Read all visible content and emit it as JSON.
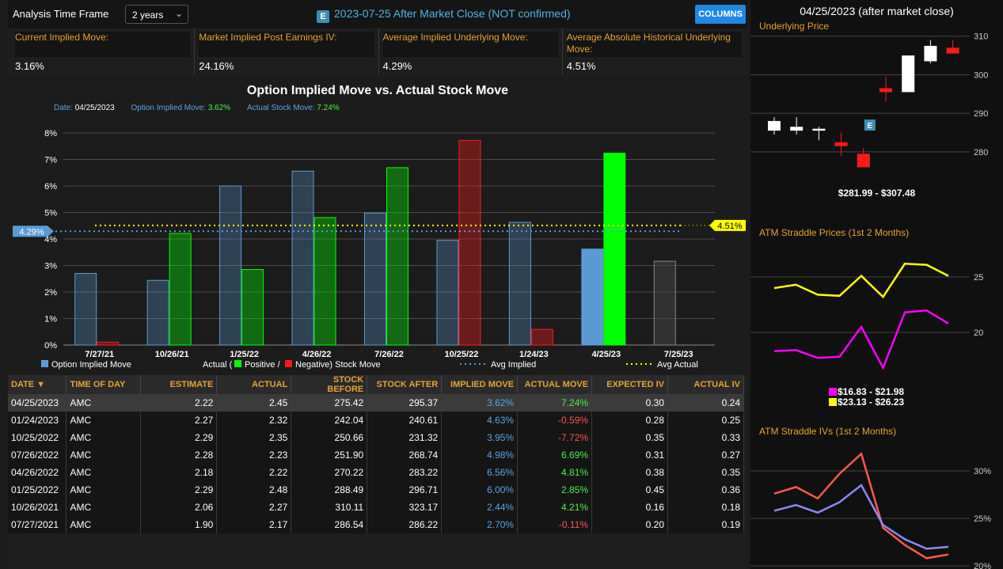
{
  "toolbar": {
    "time_frame_label": "Analysis Time Frame",
    "time_frame_value": "2 years",
    "event_badge": "E",
    "event_text": "2023-07-25 After Market Close (NOT confirmed)",
    "columns_label": "COLUMNS"
  },
  "stats": [
    {
      "label": "Current Implied Move:",
      "value": "3.16%"
    },
    {
      "label": "Market Implied Post Earnings IV:",
      "value": "24.16%"
    },
    {
      "label": "Average Implied Underlying Move:",
      "value": "4.29%"
    },
    {
      "label": "Average Absolute Historical Underlying Move:",
      "value": "4.51%"
    }
  ],
  "chart_data": {
    "type": "bar",
    "title": "Option Implied Move vs. Actual Stock Move",
    "subtitle": {
      "date_label": "Date:",
      "date_value": "04/25/2023",
      "implied_label": "Option Implied Move:",
      "implied_value": "3.62%",
      "actual_label": "Actual Stock Move:",
      "actual_value": "7.24%"
    },
    "categories": [
      "7/27/21",
      "10/26/21",
      "1/25/22",
      "4/26/22",
      "7/26/22",
      "10/25/22",
      "1/24/23",
      "4/25/23",
      "7/25/23"
    ],
    "series": [
      {
        "name": "Option Implied Move",
        "values": [
          2.7,
          2.44,
          6.0,
          6.56,
          4.98,
          3.95,
          4.63,
          3.62,
          3.16
        ]
      },
      {
        "name": "Actual Stock Move",
        "values": [
          0.11,
          4.21,
          2.85,
          4.81,
          6.69,
          7.72,
          0.59,
          7.24,
          null
        ],
        "signs": [
          -1,
          1,
          1,
          1,
          1,
          -1,
          -1,
          1,
          0
        ]
      }
    ],
    "highlight_index": 7,
    "avg_implied": 4.29,
    "avg_actual": 4.51,
    "avg_implied_label": "4.29%",
    "avg_actual_label": "4.51%",
    "ylim": [
      0,
      8
    ],
    "yticks": [
      "0%",
      "1%",
      "2%",
      "3%",
      "4%",
      "5%",
      "6%",
      "7%",
      "8%"
    ],
    "legend": {
      "implied": "Option Implied Move",
      "actual_prefix": "Actual (",
      "positive": "Positive /",
      "negative": "Negative) Stock Move",
      "avg_implied": "Avg Implied",
      "avg_actual": "Avg Actual"
    },
    "colors": {
      "implied": "#5b9bd5",
      "positive": "#00ff00",
      "negative": "#ff1a1a",
      "avg_implied": "#5b9bd5",
      "avg_actual": "#ffff00"
    }
  },
  "table": {
    "headers": [
      "DATE ▼",
      "TIME OF DAY",
      "ESTIMATE",
      "ACTUAL",
      "STOCK BEFORE",
      "STOCK AFTER",
      "IMPLIED MOVE",
      "ACTUAL MOVE",
      "EXPECTED IV",
      "ACTUAL IV"
    ],
    "rows": [
      [
        "04/25/2023",
        "AMC",
        "2.22",
        "2.45",
        "275.42",
        "295.37",
        "3.62%",
        "7.24%",
        "0.30",
        "0.24"
      ],
      [
        "01/24/2023",
        "AMC",
        "2.27",
        "2.32",
        "242.04",
        "240.61",
        "4.63%",
        "-0.59%",
        "0.28",
        "0.25"
      ],
      [
        "10/25/2022",
        "AMC",
        "2.29",
        "2.35",
        "250.66",
        "231.32",
        "3.95%",
        "-7.72%",
        "0.35",
        "0.33"
      ],
      [
        "07/26/2022",
        "AMC",
        "2.28",
        "2.23",
        "251.90",
        "268.74",
        "4.98%",
        "6.69%",
        "0.31",
        "0.27"
      ],
      [
        "04/26/2022",
        "AMC",
        "2.18",
        "2.22",
        "270.22",
        "283.22",
        "6.56%",
        "4.81%",
        "0.38",
        "0.35"
      ],
      [
        "01/25/2022",
        "AMC",
        "2.29",
        "2.48",
        "288.49",
        "296.71",
        "6.00%",
        "2.85%",
        "0.45",
        "0.36"
      ],
      [
        "10/26/2021",
        "AMC",
        "2.06",
        "2.27",
        "310.11",
        "323.17",
        "2.44%",
        "4.21%",
        "0.16",
        "0.18"
      ],
      [
        "07/27/2021",
        "AMC",
        "1.90",
        "2.17",
        "286.54",
        "286.22",
        "2.70%",
        "-0.11%",
        "0.20",
        "0.19"
      ]
    ]
  },
  "side": {
    "title": "04/25/2023 (after market close)",
    "underlying": {
      "label": "Underlying Price",
      "range": "$281.99 - $307.48",
      "yticks": [
        280,
        290,
        300,
        310
      ],
      "ylim": [
        273,
        312
      ],
      "candles": [
        {
          "o": 285.5,
          "h": 289,
          "l": 284.5,
          "c": 288
        },
        {
          "o": 285.5,
          "h": 289,
          "l": 284.5,
          "c": 286.5
        },
        {
          "o": 285.5,
          "h": 286.5,
          "l": 283,
          "c": 286
        },
        {
          "o": 282.5,
          "h": 285,
          "l": 279,
          "c": 281.5
        },
        {
          "o": 279.5,
          "h": 281,
          "l": 276,
          "c": 276
        },
        {
          "o": 296.5,
          "h": 299.5,
          "l": 293,
          "c": 295.5
        },
        {
          "o": 295.5,
          "h": 305,
          "l": 295.5,
          "c": 305
        },
        {
          "o": 303.5,
          "h": 309,
          "l": 303,
          "c": 307.5
        },
        {
          "o": 307,
          "h": 309,
          "l": 305.5,
          "c": 305.5
        }
      ],
      "earnings_index": 4,
      "earnings_badge": "E"
    },
    "straddle_prices": {
      "label": "ATM Straddle Prices (1st 2 Months)",
      "yticks": [
        20,
        25
      ],
      "ylim": [
        16,
        28
      ],
      "series": [
        {
          "color": "#ff00ff",
          "values": [
            18.3,
            18.4,
            17.7,
            17.8,
            20.5,
            16.8,
            21.8,
            21.98,
            20.8
          ]
        },
        {
          "color": "#ffff00",
          "values": [
            24.0,
            24.3,
            23.4,
            23.3,
            25.1,
            23.2,
            26.2,
            26.1,
            25.1
          ]
        }
      ],
      "legend": [
        "$16.83 - $21.98",
        "$23.13 - $26.23"
      ]
    },
    "straddle_ivs": {
      "label": "ATM Straddle IVs (1st 2 Months)",
      "yticks": [
        "20%",
        "25%",
        "30%"
      ],
      "ytick_values": [
        20,
        25,
        30
      ],
      "ylim": [
        20,
        33
      ],
      "series": [
        {
          "color": "#ff5a4a",
          "values": [
            27.6,
            28.3,
            27.1,
            29.7,
            31.8,
            24.0,
            22.2,
            20.8,
            21.2
          ]
        },
        {
          "color": "#8a8aff",
          "values": [
            25.8,
            26.4,
            25.6,
            26.7,
            28.5,
            24.3,
            22.8,
            21.8,
            22.0
          ]
        }
      ]
    }
  }
}
